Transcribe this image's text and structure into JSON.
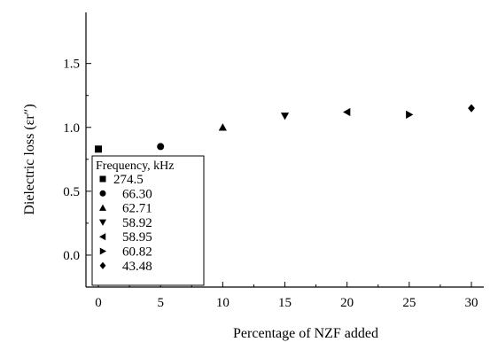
{
  "chart_data": {
    "type": "scatter",
    "xlabel": "Percentage of NZF added",
    "ylabel": "Dielectric loss (εr″)",
    "xlim": [
      -1,
      31
    ],
    "ylim": [
      -0.25,
      1.9
    ],
    "x_ticks": [
      0,
      5,
      10,
      15,
      20,
      25,
      30
    ],
    "y_ticks": [
      0.0,
      0.5,
      1.0,
      1.5
    ],
    "y_tick_labels": [
      "0.0",
      "0.5",
      "1.0",
      "1.5"
    ],
    "legend_title": "Frequency, kHz",
    "legend_position": "bottom-left",
    "grid": false,
    "series": [
      {
        "name": "274.5",
        "marker": "square",
        "x": 0,
        "y": 0.83
      },
      {
        "name": "66.30",
        "marker": "circle",
        "x": 5,
        "y": 0.85
      },
      {
        "name": "62.71",
        "marker": "triangle-up",
        "x": 10,
        "y": 1.0
      },
      {
        "name": "58.92",
        "marker": "triangle-down",
        "x": 15,
        "y": 1.09
      },
      {
        "name": "58.95",
        "marker": "triangle-left",
        "x": 20,
        "y": 1.12
      },
      {
        "name": "60.82",
        "marker": "triangle-right",
        "x": 25,
        "y": 1.1
      },
      {
        "name": "43.48",
        "marker": "diamond",
        "x": 30,
        "y": 1.15
      }
    ]
  }
}
